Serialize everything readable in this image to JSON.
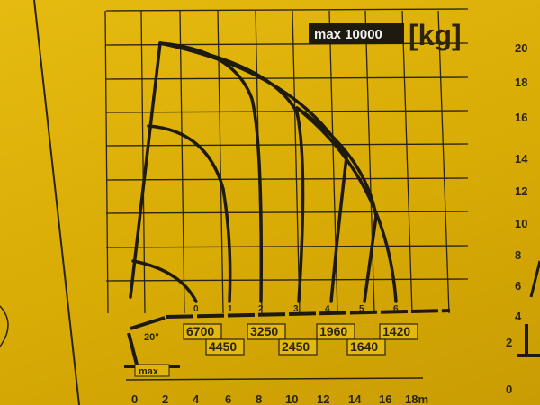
{
  "header": {
    "max_label": "max 10000",
    "unit_label": "[kg]"
  },
  "boom_angle": "20°",
  "extension_marks": [
    "0",
    "1",
    "2",
    "3",
    "4",
    "5",
    "6"
  ],
  "capacities_top": [
    "6700",
    "3250",
    "1960",
    "1420"
  ],
  "capacities_bottom": [
    "4450",
    "2450",
    "1640"
  ],
  "x_axis": {
    "ticks": [
      "0",
      "2",
      "4",
      "6",
      "8",
      "10",
      "12",
      "14",
      "16",
      "18m"
    ]
  },
  "max_tag": "max",
  "right_chart": {
    "y_ticks": [
      "20",
      "18",
      "16",
      "14",
      "12",
      "10",
      "8",
      "6",
      "4",
      "2",
      "0"
    ]
  },
  "colors": {
    "sticker": "#e0b40a",
    "ink": "#1e1a10",
    "label_bg": "#f2f2f2"
  }
}
